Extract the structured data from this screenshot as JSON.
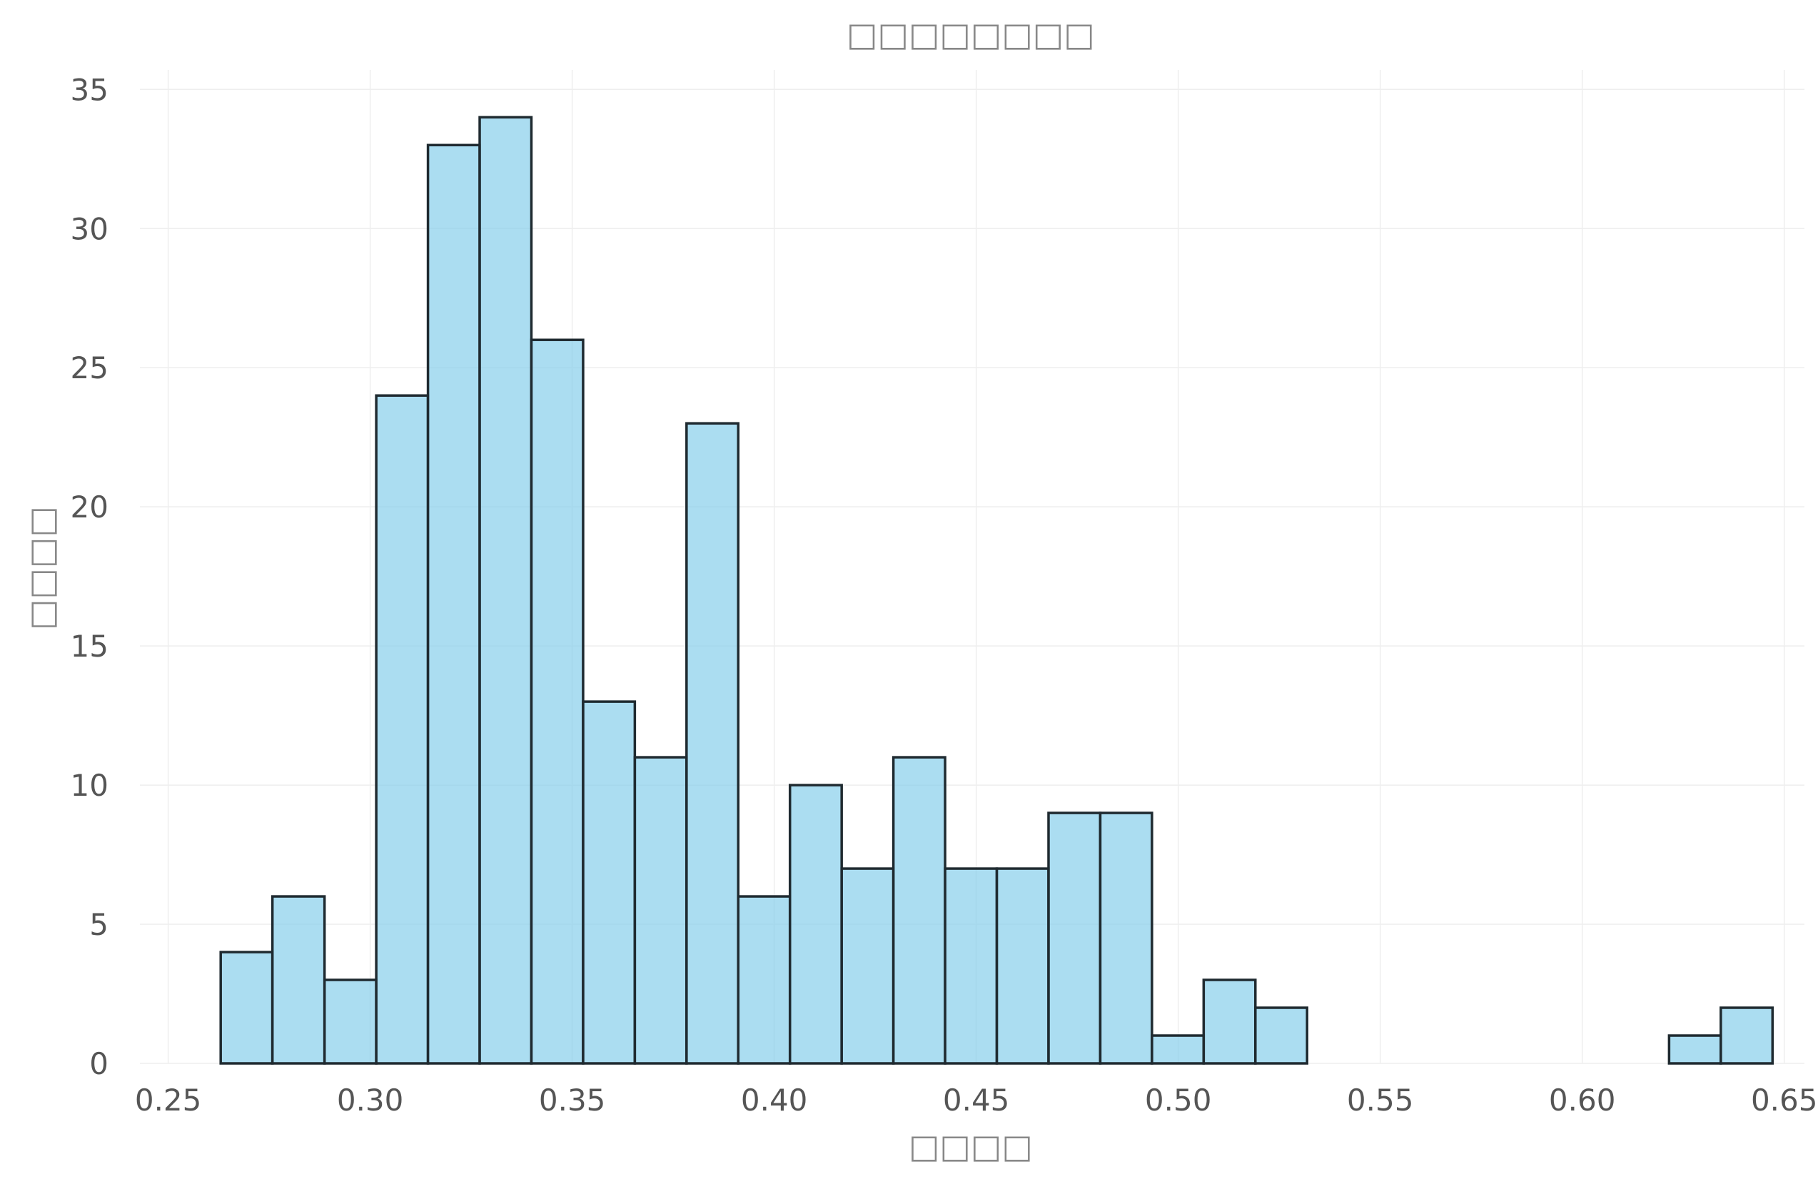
{
  "chart_data": {
    "type": "bar",
    "title": "□□□□□□□□",
    "xlabel": "□□□□",
    "ylabel": "□□□□",
    "xlim": [
      0.243,
      0.655
    ],
    "ylim": [
      0,
      35.7
    ],
    "grid": true,
    "x_ticks": [
      0.25,
      0.3,
      0.35,
      0.4,
      0.45,
      0.5,
      0.55,
      0.6,
      0.65
    ],
    "x_tick_labels": [
      "0.25",
      "0.30",
      "0.35",
      "0.40",
      "0.45",
      "0.50",
      "0.55",
      "0.60",
      "0.65"
    ],
    "y_ticks": [
      0,
      5,
      10,
      15,
      20,
      25,
      30,
      35
    ],
    "y_tick_labels": [
      "0",
      "5",
      "10",
      "15",
      "20",
      "25",
      "30",
      "35"
    ],
    "bin_edges": [
      0.263,
      0.2758,
      0.2887,
      0.3015,
      0.3143,
      0.3271,
      0.3399,
      0.3527,
      0.3655,
      0.3783,
      0.3911,
      0.4039,
      0.4167,
      0.4295,
      0.4423,
      0.4551,
      0.4679,
      0.4807,
      0.4935,
      0.5063,
      0.5191,
      0.5319,
      0.5447,
      0.5575,
      0.5703,
      0.5831,
      0.5959,
      0.6087,
      0.6215,
      0.6343,
      0.6471
    ],
    "values": [
      4,
      6,
      3,
      24,
      33,
      34,
      26,
      13,
      11,
      23,
      6,
      10,
      7,
      11,
      7,
      7,
      9,
      9,
      1,
      3,
      2,
      0,
      0,
      0,
      0,
      0,
      0,
      0,
      1,
      2
    ],
    "colors": {
      "bar_fill": "#87CEEB",
      "bar_stroke": "#1f2a30",
      "grid": "#eeeeee",
      "tick_text": "#555555",
      "label_text": "#888888"
    }
  }
}
